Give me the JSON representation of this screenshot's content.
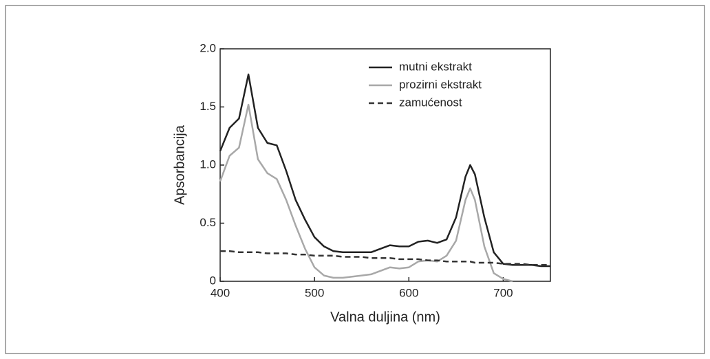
{
  "chart_data": {
    "type": "line",
    "xlabel": "Valna duljina (nm)",
    "ylabel": "Apsorbancija",
    "x": [
      400,
      410,
      420,
      430,
      440,
      450,
      460,
      470,
      480,
      490,
      500,
      510,
      520,
      530,
      540,
      550,
      560,
      570,
      580,
      590,
      600,
      610,
      620,
      630,
      640,
      650,
      660,
      665,
      670,
      680,
      690,
      700,
      710,
      720,
      730,
      740,
      750
    ],
    "series": [
      {
        "name": "mutni ekstrakt",
        "color": "#222222",
        "dash": false,
        "values": [
          1.12,
          1.32,
          1.4,
          1.78,
          1.32,
          1.19,
          1.17,
          0.95,
          0.7,
          0.53,
          0.38,
          0.3,
          0.26,
          0.25,
          0.25,
          0.25,
          0.25,
          0.28,
          0.31,
          0.3,
          0.3,
          0.34,
          0.35,
          0.33,
          0.36,
          0.55,
          0.9,
          1.0,
          0.92,
          0.55,
          0.25,
          0.15,
          0.14,
          0.14,
          0.14,
          0.13,
          0.13
        ]
      },
      {
        "name": "prozirni ekstrakt",
        "color": "#a8a8a8",
        "dash": false,
        "values": [
          0.86,
          1.08,
          1.15,
          1.52,
          1.05,
          0.93,
          0.88,
          0.7,
          0.48,
          0.28,
          0.12,
          0.05,
          0.03,
          0.03,
          0.04,
          0.05,
          0.06,
          0.09,
          0.12,
          0.11,
          0.12,
          0.17,
          0.18,
          0.17,
          0.22,
          0.35,
          0.7,
          0.8,
          0.7,
          0.3,
          0.07,
          0.02,
          0.0,
          null,
          null,
          null,
          null
        ]
      },
      {
        "name": "zamućenost",
        "color": "#333333",
        "dash": true,
        "values": [
          0.26,
          0.26,
          0.25,
          0.25,
          0.25,
          0.24,
          0.24,
          0.24,
          0.23,
          0.23,
          0.22,
          0.22,
          0.22,
          0.21,
          0.21,
          0.21,
          0.2,
          0.2,
          0.2,
          0.19,
          0.19,
          0.19,
          0.18,
          0.18,
          0.17,
          0.17,
          0.17,
          0.17,
          0.16,
          0.16,
          0.16,
          0.15,
          0.15,
          0.15,
          0.14,
          0.14,
          0.14
        ]
      }
    ],
    "xlim": [
      400,
      750
    ],
    "xticks": [
      400,
      500,
      600,
      700
    ],
    "ylim": [
      0,
      2
    ],
    "yticks": [
      0,
      0.5,
      {
        "value": 1,
        "label": "1.0"
      },
      1.5,
      {
        "value": 2,
        "label": "2.0"
      }
    ],
    "legend": "upper right"
  }
}
